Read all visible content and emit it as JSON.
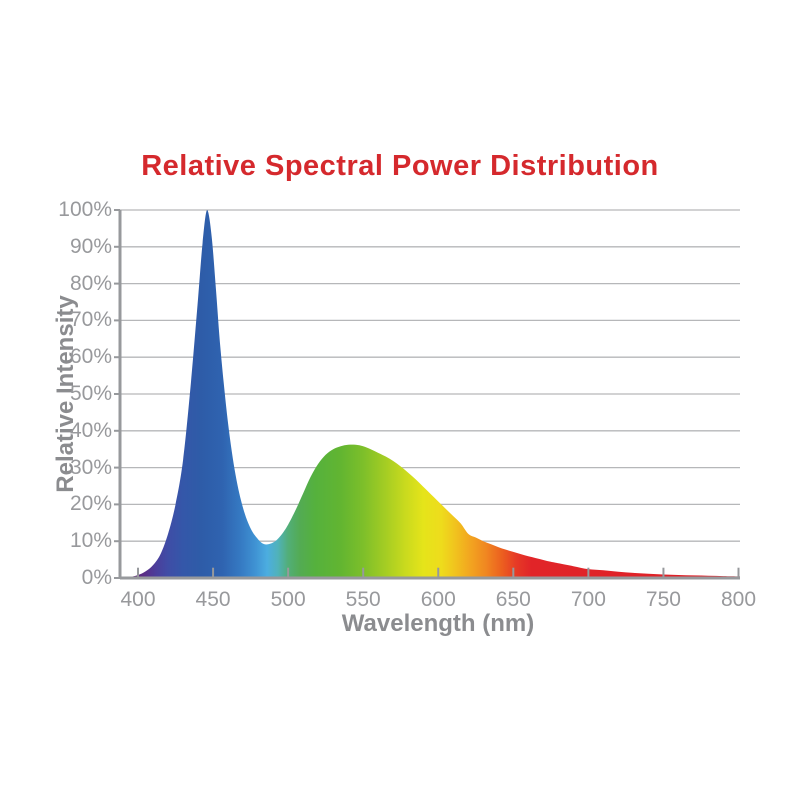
{
  "page": {
    "background": "#ffffff"
  },
  "chart": {
    "title": "Relative Spectral Power Distribution",
    "x_axis": {
      "title": "Wavelength (nm)",
      "tick_labels": [
        "400",
        "450",
        "500",
        "550",
        "600",
        "650",
        "700",
        "750",
        "800"
      ],
      "tick_values": [
        400,
        450,
        500,
        550,
        600,
        650,
        700,
        750,
        800
      ]
    },
    "y_axis": {
      "title": "Relative Intensity",
      "tick_labels": [
        "100%",
        "90%",
        "80%",
        "70%",
        "60%",
        "50%",
        "40%",
        "30%",
        "20%",
        "10%",
        "0%"
      ],
      "tick_values": [
        100,
        90,
        80,
        70,
        60,
        50,
        40,
        30,
        20,
        10,
        0
      ]
    },
    "colors": {
      "title": "#d5292d",
      "axis_title_text": "#8b8c8f",
      "tick_label_text": "#98999c",
      "gridline": "#b6b7b9",
      "axis_line": "#97999c",
      "background": "#ffffff"
    }
  },
  "chart_data": {
    "type": "area",
    "title": "Relative Spectral Power Distribution",
    "xlabel": "Wavelength (nm)",
    "ylabel": "Relative Intensity",
    "xlim": [
      388,
      801
    ],
    "ylim": [
      0,
      100
    ],
    "x_unit": "nm",
    "y_unit": "%",
    "grid": "horizontal-only",
    "legend": "none",
    "description": "White LED spectral power distribution: narrow blue peak at ~446 nm reaching 100%, valley of ~9% near 486 nm, broad phosphor hump peaking ~36% near 540 nm, long red tail decaying toward 800 nm. Area fill is a horizontal visible-spectrum rainbow gradient.",
    "series": [
      {
        "name": "relative-intensity",
        "x": [
          388,
          394,
          400,
          405,
          410,
          415,
          420,
          425,
          430,
          435,
          440,
          443,
          446,
          449,
          452,
          455,
          460,
          465,
          470,
          475,
          480,
          484,
          488,
          492,
          496,
          500,
          505,
          510,
          515,
          520,
          525,
          530,
          535,
          540,
          545,
          550,
          555,
          560,
          565,
          570,
          575,
          580,
          585,
          590,
          595,
          600,
          605,
          610,
          615,
          620,
          625,
          630,
          635,
          640,
          645,
          650,
          655,
          660,
          665,
          670,
          675,
          680,
          690,
          700,
          710,
          720,
          730,
          740,
          750,
          760,
          770,
          780,
          790,
          800,
          801
        ],
        "y": [
          0,
          0.2,
          0.8,
          1.8,
          3.5,
          6.5,
          12,
          20,
          32,
          52,
          76,
          91,
          100,
          93,
          78,
          62,
          42,
          28,
          19,
          13.5,
          10.5,
          9.2,
          9.3,
          10.2,
          12,
          14.5,
          18.5,
          23,
          27.5,
          31,
          33.5,
          35,
          35.8,
          36.2,
          36.2,
          35.8,
          35,
          34,
          33,
          31.8,
          30.3,
          28.6,
          26.8,
          24.8,
          22.8,
          20.8,
          18.8,
          16.8,
          14.8,
          12,
          11,
          10,
          9.2,
          8.4,
          7.7,
          7.1,
          6.5,
          5.9,
          5.4,
          4.9,
          4.4,
          4,
          3.2,
          2.4,
          2.1,
          1.7,
          1.4,
          1.15,
          0.95,
          0.8,
          0.7,
          0.6,
          0.52,
          0.45,
          0.45
        ]
      }
    ],
    "key_features": {
      "blue_peak": {
        "wavelength_nm": 446,
        "value_pct": 100
      },
      "valley": {
        "wavelength_nm": 486,
        "value_pct": 9
      },
      "phosphor_peak": {
        "wavelength_nm": 540,
        "value_pct": 36
      }
    },
    "gradient_stops": [
      [
        388,
        "#4a1566"
      ],
      [
        396,
        "#5d2173"
      ],
      [
        404,
        "#5a2d86"
      ],
      [
        412,
        "#4b3e9b"
      ],
      [
        420,
        "#3f4da6"
      ],
      [
        430,
        "#3457a9"
      ],
      [
        442,
        "#2e5ca8"
      ],
      [
        456,
        "#2f63b0"
      ],
      [
        468,
        "#3579c2"
      ],
      [
        478,
        "#3f92d3"
      ],
      [
        486,
        "#4cade0"
      ],
      [
        493,
        "#50b2bb"
      ],
      [
        500,
        "#52ae78"
      ],
      [
        508,
        "#53ab53"
      ],
      [
        518,
        "#55b13d"
      ],
      [
        535,
        "#62b531"
      ],
      [
        550,
        "#7dbf2a"
      ],
      [
        565,
        "#a5cd23"
      ],
      [
        578,
        "#c9da1e"
      ],
      [
        590,
        "#e5e41a"
      ],
      [
        602,
        "#eedc1c"
      ],
      [
        612,
        "#f1c11e"
      ],
      [
        622,
        "#f2a320"
      ],
      [
        632,
        "#f08621"
      ],
      [
        642,
        "#ec611f"
      ],
      [
        652,
        "#e63a26"
      ],
      [
        662,
        "#e12428"
      ],
      [
        801,
        "#dd2028"
      ]
    ]
  }
}
